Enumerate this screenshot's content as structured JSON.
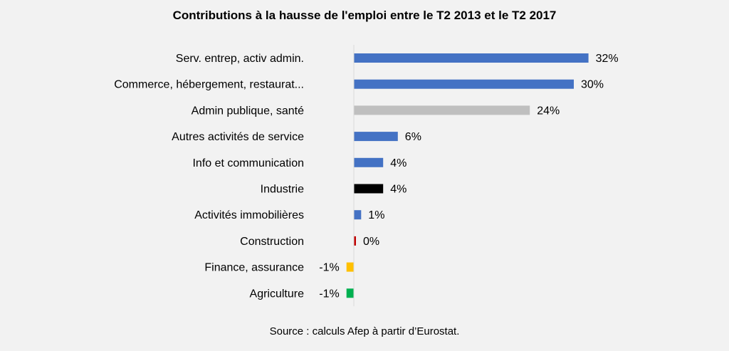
{
  "chart_data": {
    "type": "bar",
    "orientation": "horizontal",
    "title": "Contributions à la hausse de l'emploi entre le T2 2013 et le T2 2017",
    "categories": [
      "Serv. entrep, activ admin.",
      "Commerce, hébergement, restaurat...",
      "Admin publique, santé",
      "Autres activités de service",
      "Info et communication",
      "Industrie",
      "Activités immobilières",
      "Construction",
      "Finance, assurance",
      "Agriculture"
    ],
    "values": [
      32,
      30,
      24,
      6,
      4,
      4,
      1,
      0,
      -1,
      -1
    ],
    "value_labels": [
      "32%",
      "30%",
      "24%",
      "6%",
      "4%",
      "4%",
      "1%",
      "0%",
      "-1%",
      "-1%"
    ],
    "colors": [
      "#4472c4",
      "#4472c4",
      "#bfbfbf",
      "#4472c4",
      "#4472c4",
      "#000000",
      "#4472c4",
      "#c00000",
      "#ffc000",
      "#00b050"
    ],
    "xlim": [
      -1.2,
      32
    ],
    "xlabel": "",
    "ylabel": "",
    "grid": false,
    "legend": "none"
  },
  "source": "Source : calculs Afep à partir d’Eurostat."
}
